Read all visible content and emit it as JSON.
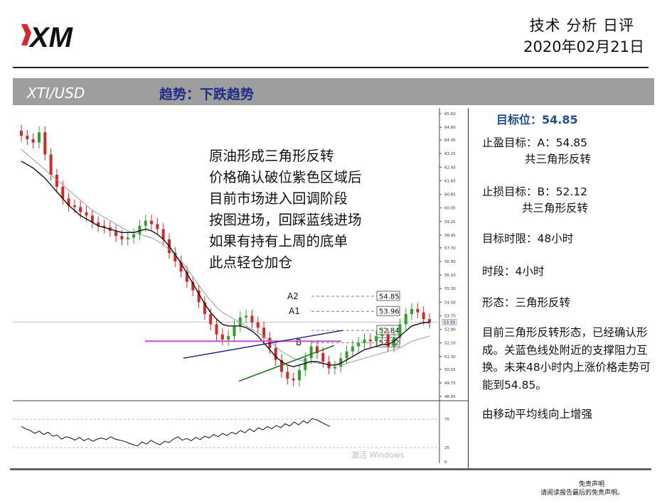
{
  "header": {
    "logo_text": "XM",
    "title": "技术 分析 日评",
    "date": "2020年02月21日"
  },
  "bar": {
    "symbol": "XTI/USD",
    "trend": "趋势：下跌趋势"
  },
  "annotation_lines": [
    "原油形成三角形反转",
    "价格确认破位紫色区域后",
    "目前市场进入回调阶段",
    "按图进场，回踩蓝线进场",
    "如果有持有上周的底单",
    "此点轻仓加仓"
  ],
  "side": {
    "target": "目标位：54.85",
    "tp_a": "止盈目标：A：54.85",
    "tp_a_note": "共三角形反转",
    "sl_b": "止损目标：B：52.12",
    "sl_b_note": "共三角形反转",
    "horizon": "目标时限：48小时",
    "timeframe": "时段：4小时",
    "pattern": "形态：三角形反转",
    "paragraph": "目前三角形反转形态，已经确认形成。关蓝色线处附近的支撑阻力互换。未来48小时内上涨价格走势可能到54.85。",
    "ma_note": "由移动平均线向上增强"
  },
  "disclaimer": {
    "line1": "免责声明",
    "line2": "请阅读报告最后的免责声明。"
  },
  "watermark": "激活 Windows",
  "chart_data": {
    "type": "line",
    "price_axis_ticks": [
      "65.60",
      "64.80",
      "64.05",
      "63.25",
      "62.45",
      "61.65",
      "60.85",
      "60.05",
      "59.25",
      "58.45",
      "57.70",
      "56.90",
      "56.10",
      "55.30",
      "54.50",
      "53.70",
      "52.90",
      "52.10",
      "51.30",
      "50.55",
      "49.75",
      "48.95"
    ],
    "last_price": "53.33",
    "ylim": [
      48.95,
      65.6
    ],
    "levels": [
      {
        "label": "A2",
        "value": 54.85,
        "tag": "54.85"
      },
      {
        "label": "A1",
        "value": 53.96,
        "tag": "53.96"
      },
      {
        "label": "",
        "value": 52.84,
        "tag": "52.84"
      },
      {
        "label": "B",
        "value": 52.12,
        "tag": "52.12"
      }
    ],
    "close_series": [
      64.3,
      64.1,
      63.9,
      64.5,
      63.2,
      62.0,
      61.3,
      60.6,
      60.2,
      60.1,
      59.8,
      59.6,
      59.2,
      59.0,
      58.9,
      58.7,
      58.4,
      58.2,
      58.3,
      58.5,
      59.0,
      59.3,
      59.1,
      58.8,
      58.2,
      57.4,
      56.9,
      56.3,
      55.7,
      55.2,
      54.5,
      53.8,
      53.2,
      52.6,
      52.3,
      52.5,
      53.1,
      53.6,
      53.7,
      53.3,
      53.0,
      52.4,
      51.8,
      51.1,
      50.4,
      50.0,
      49.9,
      50.5,
      51.2,
      51.9,
      51.5,
      51.0,
      50.6,
      50.7,
      51.2,
      51.6,
      51.9,
      52.1,
      52.3,
      52.2,
      52.5,
      52.6,
      51.9,
      52.4,
      53.2,
      53.8,
      54.1,
      53.9,
      53.5,
      53.3
    ],
    "ma_fast": [
      62.8,
      62.6,
      62.4,
      62.1,
      61.8,
      61.4,
      61.0,
      60.6,
      60.2,
      59.9,
      59.6,
      59.4,
      59.2,
      59.0,
      58.9,
      58.8,
      58.7,
      58.6,
      58.6,
      58.6,
      58.7,
      58.8,
      58.7,
      58.5,
      58.2,
      57.8,
      57.3,
      56.8,
      56.2,
      55.6,
      55.0,
      54.4,
      53.9,
      53.5,
      53.2,
      53.1,
      53.1,
      53.1,
      53.0,
      52.8,
      52.5,
      52.1,
      51.7,
      51.3,
      51.0,
      50.8,
      50.7,
      50.8,
      50.9,
      51.0,
      51.0,
      50.9,
      50.8,
      50.8,
      50.9,
      51.1,
      51.3,
      51.5,
      51.7,
      51.8,
      51.9,
      52.0,
      52.0,
      52.2,
      52.5,
      52.8,
      53.1,
      53.2,
      53.3,
      53.3
    ],
    "ma_slow": [
      63.5,
      63.2,
      62.9,
      62.6,
      62.3,
      62.0,
      61.7,
      61.4,
      61.1,
      60.8,
      60.5,
      60.2,
      59.9,
      59.7,
      59.5,
      59.3,
      59.1,
      58.9,
      58.7,
      58.6,
      58.5,
      58.4,
      58.3,
      58.1,
      57.9,
      57.6,
      57.3,
      56.9,
      56.5,
      56.0,
      55.5,
      55.0,
      54.6,
      54.2,
      53.9,
      53.7,
      53.5,
      53.3,
      53.1,
      52.9,
      52.7,
      52.5,
      52.2,
      51.9,
      51.6,
      51.4,
      51.2,
      51.1,
      51.0,
      51.0,
      50.9,
      50.9,
      50.8,
      50.8,
      50.8,
      50.9,
      51.0,
      51.1,
      51.2,
      51.3,
      51.4,
      51.5,
      51.6,
      51.7,
      51.8,
      52.0,
      52.2,
      52.3,
      52.4,
      52.5
    ],
    "oscillator_ticks": [
      "75",
      "25",
      "0"
    ],
    "oscillator": [
      62,
      58,
      55,
      50,
      54,
      48,
      52,
      45,
      47,
      40,
      44,
      42,
      38,
      43,
      37,
      41,
      36,
      40,
      42,
      39,
      44,
      40,
      38,
      36,
      33,
      30,
      28,
      35,
      31,
      38,
      33,
      30,
      36,
      34,
      40,
      44,
      38,
      41,
      37,
      43,
      39,
      45,
      42,
      48,
      44,
      50,
      46,
      52,
      49,
      55,
      51,
      58,
      53,
      60,
      56,
      62,
      58,
      64,
      60,
      67,
      63,
      70,
      65,
      72,
      68,
      76,
      74,
      70,
      66,
      62
    ]
  },
  "colors": {
    "bar_gray": "#9e9e9e",
    "trend_text": "#1f2c86",
    "target_text": "#1e4f8c",
    "ma_fast": "#111111",
    "ma_slow": "#999999",
    "trend_blue": "#1c1c8a",
    "support_green": "#1e7a1e",
    "zone_magenta": "#d24ad2",
    "bull": "#2ca02c",
    "bear": "#d62728"
  }
}
